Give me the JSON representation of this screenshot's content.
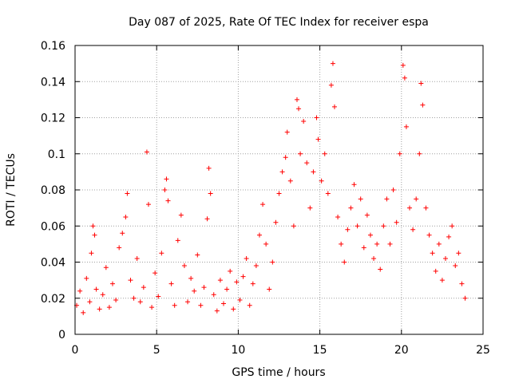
{
  "chart_data": {
    "type": "scatter",
    "title": "Day 087 of 2025, Rate Of TEC Index for receiver espa",
    "xlabel": "GPS time / hours",
    "ylabel": "ROTI / TECUs",
    "xlim": [
      0,
      25
    ],
    "ylim": [
      0,
      0.16
    ],
    "xticks": [
      0,
      5,
      10,
      15,
      20,
      25
    ],
    "xtick_labels": [
      "0",
      "5",
      "10",
      "15",
      "20",
      "25"
    ],
    "yticks": [
      0,
      0.02,
      0.04,
      0.06,
      0.08,
      0.1,
      0.12,
      0.14,
      0.16
    ],
    "ytick_labels": [
      "0",
      "0.02",
      "0.04",
      "0.06",
      "0.08",
      "0.1",
      "0.12",
      "0.14",
      "0.16"
    ],
    "grid": true,
    "marker": "+",
    "color": "#ff0000",
    "series": [
      {
        "name": "ROTI",
        "points": [
          [
            0.1,
            0.016
          ],
          [
            0.3,
            0.024
          ],
          [
            0.5,
            0.012
          ],
          [
            0.7,
            0.031
          ],
          [
            0.9,
            0.018
          ],
          [
            1.0,
            0.045
          ],
          [
            1.1,
            0.06
          ],
          [
            1.2,
            0.055
          ],
          [
            1.3,
            0.025
          ],
          [
            1.5,
            0.014
          ],
          [
            1.7,
            0.022
          ],
          [
            1.9,
            0.037
          ],
          [
            2.1,
            0.015
          ],
          [
            2.3,
            0.028
          ],
          [
            2.5,
            0.019
          ],
          [
            2.7,
            0.048
          ],
          [
            2.9,
            0.056
          ],
          [
            3.1,
            0.065
          ],
          [
            3.2,
            0.078
          ],
          [
            3.4,
            0.03
          ],
          [
            3.6,
            0.02
          ],
          [
            3.8,
            0.042
          ],
          [
            4.0,
            0.018
          ],
          [
            4.2,
            0.026
          ],
          [
            4.4,
            0.101
          ],
          [
            4.5,
            0.072
          ],
          [
            4.7,
            0.015
          ],
          [
            4.9,
            0.034
          ],
          [
            5.1,
            0.021
          ],
          [
            5.3,
            0.045
          ],
          [
            5.5,
            0.08
          ],
          [
            5.6,
            0.086
          ],
          [
            5.7,
            0.074
          ],
          [
            5.9,
            0.028
          ],
          [
            6.1,
            0.016
          ],
          [
            6.3,
            0.052
          ],
          [
            6.5,
            0.066
          ],
          [
            6.7,
            0.038
          ],
          [
            6.9,
            0.018
          ],
          [
            7.1,
            0.031
          ],
          [
            7.3,
            0.024
          ],
          [
            7.5,
            0.044
          ],
          [
            7.7,
            0.016
          ],
          [
            7.9,
            0.026
          ],
          [
            8.1,
            0.064
          ],
          [
            8.2,
            0.092
          ],
          [
            8.3,
            0.078
          ],
          [
            8.5,
            0.022
          ],
          [
            8.7,
            0.013
          ],
          [
            8.9,
            0.03
          ],
          [
            9.1,
            0.017
          ],
          [
            9.3,
            0.025
          ],
          [
            9.5,
            0.035
          ],
          [
            9.7,
            0.014
          ],
          [
            9.9,
            0.029
          ],
          [
            10.1,
            0.019
          ],
          [
            10.3,
            0.032
          ],
          [
            10.5,
            0.042
          ],
          [
            10.7,
            0.016
          ],
          [
            10.9,
            0.028
          ],
          [
            11.1,
            0.038
          ],
          [
            11.3,
            0.055
          ],
          [
            11.5,
            0.072
          ],
          [
            11.7,
            0.05
          ],
          [
            11.9,
            0.025
          ],
          [
            12.1,
            0.04
          ],
          [
            12.3,
            0.062
          ],
          [
            12.5,
            0.078
          ],
          [
            12.7,
            0.09
          ],
          [
            12.9,
            0.098
          ],
          [
            13.0,
            0.112
          ],
          [
            13.2,
            0.085
          ],
          [
            13.4,
            0.06
          ],
          [
            13.6,
            0.13
          ],
          [
            13.7,
            0.125
          ],
          [
            13.8,
            0.1
          ],
          [
            14.0,
            0.118
          ],
          [
            14.2,
            0.095
          ],
          [
            14.4,
            0.07
          ],
          [
            14.6,
            0.09
          ],
          [
            14.8,
            0.12
          ],
          [
            14.9,
            0.108
          ],
          [
            15.1,
            0.085
          ],
          [
            15.3,
            0.1
          ],
          [
            15.5,
            0.078
          ],
          [
            15.7,
            0.138
          ],
          [
            15.8,
            0.15
          ],
          [
            15.9,
            0.126
          ],
          [
            16.1,
            0.065
          ],
          [
            16.3,
            0.05
          ],
          [
            16.5,
            0.04
          ],
          [
            16.7,
            0.058
          ],
          [
            16.9,
            0.07
          ],
          [
            17.1,
            0.083
          ],
          [
            17.3,
            0.06
          ],
          [
            17.5,
            0.075
          ],
          [
            17.7,
            0.048
          ],
          [
            17.9,
            0.066
          ],
          [
            18.1,
            0.055
          ],
          [
            18.3,
            0.042
          ],
          [
            18.5,
            0.05
          ],
          [
            18.7,
            0.036
          ],
          [
            18.9,
            0.06
          ],
          [
            19.1,
            0.075
          ],
          [
            19.3,
            0.05
          ],
          [
            19.5,
            0.08
          ],
          [
            19.7,
            0.062
          ],
          [
            19.9,
            0.1
          ],
          [
            20.1,
            0.149
          ],
          [
            20.2,
            0.142
          ],
          [
            20.3,
            0.115
          ],
          [
            20.5,
            0.07
          ],
          [
            20.7,
            0.058
          ],
          [
            20.9,
            0.075
          ],
          [
            21.1,
            0.1
          ],
          [
            21.2,
            0.139
          ],
          [
            21.3,
            0.127
          ],
          [
            21.5,
            0.07
          ],
          [
            21.7,
            0.055
          ],
          [
            21.9,
            0.045
          ],
          [
            22.1,
            0.035
          ],
          [
            22.3,
            0.05
          ],
          [
            22.5,
            0.03
          ],
          [
            22.7,
            0.042
          ],
          [
            22.9,
            0.054
          ],
          [
            23.1,
            0.06
          ],
          [
            23.3,
            0.038
          ],
          [
            23.5,
            0.045
          ],
          [
            23.7,
            0.028
          ],
          [
            23.9,
            0.02
          ]
        ]
      }
    ]
  }
}
